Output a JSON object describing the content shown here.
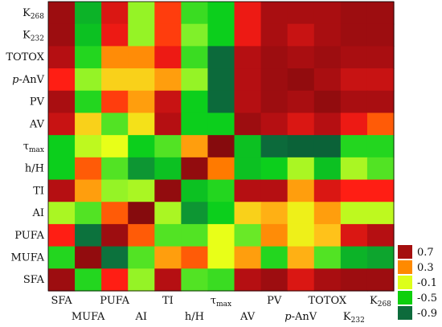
{
  "chart_data": {
    "type": "heatmap",
    "title": "",
    "xlabel": "",
    "ylabel": "",
    "rows": [
      {
        "pre": "K",
        "sub": "268",
        "ital": ""
      },
      {
        "pre": "K",
        "sub": "232",
        "ital": ""
      },
      {
        "pre": "TOTOX",
        "sub": "",
        "ital": ""
      },
      {
        "pre": "-AnV",
        "sub": "",
        "ital": "p"
      },
      {
        "pre": "PV",
        "sub": "",
        "ital": ""
      },
      {
        "pre": "AV",
        "sub": "",
        "ital": ""
      },
      {
        "pre": "τ",
        "sub": "max",
        "ital": ""
      },
      {
        "pre": "h/H",
        "sub": "",
        "ital": ""
      },
      {
        "pre": "TI",
        "sub": "",
        "ital": ""
      },
      {
        "pre": "AI",
        "sub": "",
        "ital": ""
      },
      {
        "pre": "PUFA",
        "sub": "",
        "ital": ""
      },
      {
        "pre": "MUFA",
        "sub": "",
        "ital": ""
      },
      {
        "pre": "SFA",
        "sub": "",
        "ital": ""
      }
    ],
    "columns": [
      {
        "pre": "SFA",
        "sub": "",
        "ital": ""
      },
      {
        "pre": "MUFA",
        "sub": "",
        "ital": ""
      },
      {
        "pre": "PUFA",
        "sub": "",
        "ital": ""
      },
      {
        "pre": "AI",
        "sub": "",
        "ital": ""
      },
      {
        "pre": "TI",
        "sub": "",
        "ital": ""
      },
      {
        "pre": "h/H",
        "sub": "",
        "ital": ""
      },
      {
        "pre": "τ",
        "sub": "max",
        "ital": ""
      },
      {
        "pre": "AV",
        "sub": "",
        "ital": ""
      },
      {
        "pre": "PV",
        "sub": "",
        "ital": ""
      },
      {
        "pre": "-AnV",
        "sub": "",
        "ital": "p"
      },
      {
        "pre": "TOTOX",
        "sub": "",
        "ital": ""
      },
      {
        "pre": "K",
        "sub": "232",
        "ital": ""
      },
      {
        "pre": "K",
        "sub": "268",
        "ital": ""
      }
    ],
    "values": [
      [
        0.85,
        -0.6,
        0.65,
        -0.2,
        0.5,
        -0.4,
        -0.5,
        0.6,
        0.8,
        0.8,
        0.8,
        0.85,
        0.85
      ],
      [
        0.85,
        -0.55,
        0.6,
        -0.2,
        0.5,
        -0.25,
        -0.5,
        0.6,
        0.8,
        0.7,
        0.8,
        0.85,
        0.85
      ],
      [
        0.75,
        -0.45,
        0.35,
        0.35,
        0.6,
        -0.4,
        -0.9,
        0.75,
        0.85,
        0.8,
        0.85,
        0.8,
        0.8
      ],
      [
        0.55,
        -0.2,
        0.15,
        0.15,
        0.3,
        -0.2,
        -0.9,
        0.75,
        0.85,
        0.9,
        0.8,
        0.7,
        0.7
      ],
      [
        0.8,
        -0.45,
        0.5,
        0.3,
        0.7,
        -0.5,
        -0.9,
        0.75,
        0.85,
        0.8,
        0.9,
        0.8,
        0.8
      ],
      [
        0.7,
        0.15,
        -0.35,
        0.1,
        0.75,
        -0.5,
        -0.5,
        0.85,
        0.75,
        0.65,
        0.75,
        0.6,
        0.45
      ],
      [
        -0.5,
        -0.1,
        0.0,
        -0.5,
        -0.35,
        0.3,
        0.95,
        -0.55,
        -0.9,
        -0.95,
        -0.95,
        -0.45,
        -0.45
      ],
      [
        -0.5,
        0.45,
        -0.35,
        -0.7,
        -0.55,
        0.9,
        0.4,
        -0.55,
        -0.5,
        -0.15,
        -0.55,
        -0.15,
        -0.35
      ],
      [
        0.75,
        0.3,
        -0.2,
        -0.15,
        0.9,
        -0.55,
        -0.45,
        0.75,
        0.75,
        0.3,
        0.65,
        0.55,
        0.55
      ],
      [
        -0.15,
        -0.35,
        0.45,
        0.95,
        -0.15,
        -0.7,
        -0.5,
        0.15,
        0.25,
        0.05,
        0.3,
        -0.1,
        -0.1
      ],
      [
        0.55,
        -0.85,
        0.85,
        0.45,
        -0.35,
        -0.35,
        0.0,
        -0.3,
        0.35,
        0.05,
        0.2,
        0.65,
        0.75
      ],
      [
        -0.45,
        0.9,
        -0.85,
        -0.35,
        0.3,
        0.45,
        0.0,
        0.3,
        -0.45,
        0.25,
        -0.35,
        -0.6,
        -0.65
      ],
      [
        0.85,
        -0.45,
        0.55,
        -0.2,
        0.75,
        -0.35,
        -0.4,
        0.75,
        0.85,
        0.65,
        0.8,
        0.85,
        0.85
      ]
    ],
    "legend": {
      "placement": "right-bottom",
      "entries": [
        {
          "label": "0.7",
          "color": "#a50f0f"
        },
        {
          "label": "0.3",
          "color": "#ff8a00"
        },
        {
          "label": "-0.1",
          "color": "#ddff1a"
        },
        {
          "label": "-0.5",
          "color": "#0dcf0d"
        },
        {
          "label": "-0.9",
          "color": "#0d6b3c"
        }
      ]
    },
    "color_scale": [
      {
        "v": -1.0,
        "c": "#0a5a36"
      },
      {
        "v": -0.8,
        "c": "#0d7a3f"
      },
      {
        "v": -0.5,
        "c": "#0ccf1c"
      },
      {
        "v": -0.25,
        "c": "#80f02a"
      },
      {
        "v": 0.0,
        "c": "#e8ff18"
      },
      {
        "v": 0.2,
        "c": "#ffc21a"
      },
      {
        "v": 0.4,
        "c": "#ff7a00"
      },
      {
        "v": 0.55,
        "c": "#ff1e14"
      },
      {
        "v": 0.75,
        "c": "#b50f12"
      },
      {
        "v": 1.0,
        "c": "#7a0a0c"
      }
    ]
  }
}
